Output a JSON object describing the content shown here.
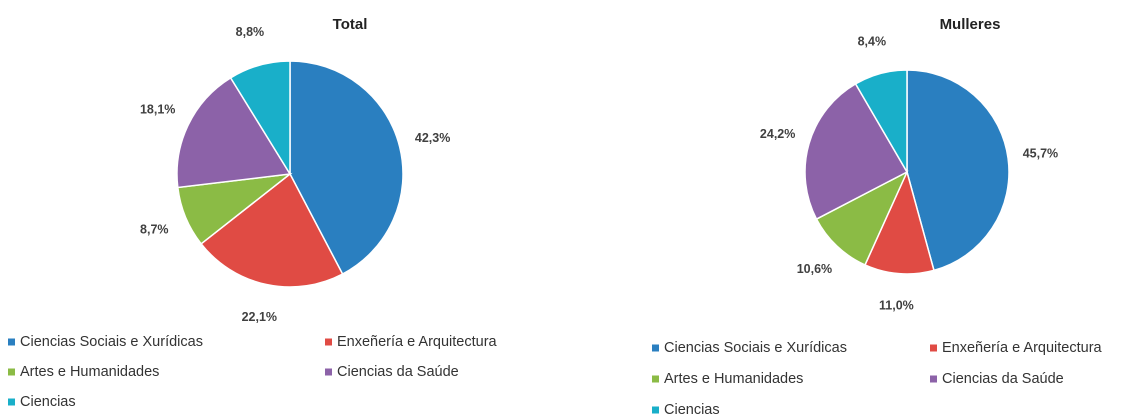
{
  "chart_data": [
    {
      "type": "pie",
      "title": "Total",
      "categories": [
        "Ciencias Sociais e Xurídicas",
        "Enxeñería e Arquitectura",
        "Artes e Humanidades",
        "Ciencias da Saúde",
        "Ciencias"
      ],
      "values": [
        42.3,
        22.1,
        8.7,
        18.1,
        8.8
      ],
      "value_labels": [
        "42,3%",
        "22,1%",
        "8,7%",
        "18,1%",
        "8,8%"
      ],
      "colors": [
        "#2a7fc0",
        "#e04b44",
        "#8bbb45",
        "#8c62a8",
        "#19afc9"
      ]
    },
    {
      "type": "pie",
      "title": "Mulleres",
      "categories": [
        "Ciencias Sociais e Xurídicas",
        "Enxeñería e Arquitectura",
        "Artes e Humanidades",
        "Ciencias da Saúde",
        "Ciencias"
      ],
      "values": [
        45.7,
        11.0,
        10.6,
        24.2,
        8.4
      ],
      "value_labels": [
        "45,7%",
        "11,0%",
        "10,6%",
        "24,2%",
        "8,4%"
      ],
      "colors": [
        "#2a7fc0",
        "#e04b44",
        "#8bbb45",
        "#8c62a8",
        "#19afc9"
      ]
    }
  ]
}
